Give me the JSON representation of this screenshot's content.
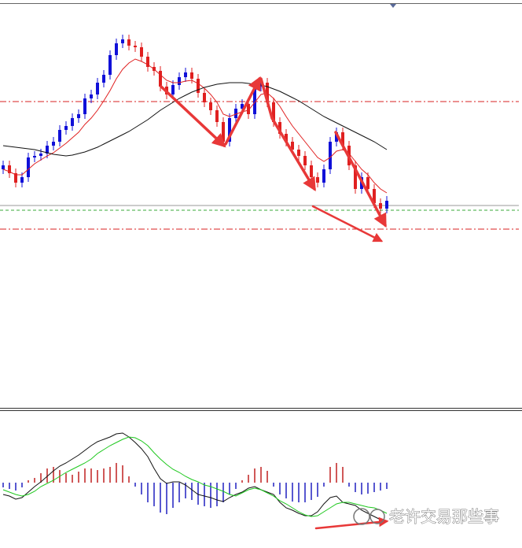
{
  "chart_data": [
    {
      "type": "candlestick",
      "up_color": "#1010d8",
      "down_color": "#e02020",
      "ylim": [
        2,
        520
      ],
      "open": [
        305,
        310,
        300,
        288,
        295,
        320,
        322,
        325,
        335,
        340,
        355,
        360,
        370,
        375,
        395,
        400,
        415,
        425,
        450,
        465,
        470,
        462,
        460,
        448,
        435,
        430,
        410,
        400,
        412,
        422,
        428,
        420,
        402,
        390,
        380,
        365,
        340,
        370,
        382,
        388,
        375,
        410,
        415,
        390,
        365,
        350,
        340,
        330,
        322,
        310,
        295,
        288,
        305,
        340,
        352,
        335,
        310,
        280,
        295,
        280,
        262,
        255
      ],
      "high": [
        316,
        316,
        306,
        301,
        326,
        328,
        331,
        341,
        346,
        361,
        366,
        376,
        381,
        401,
        406,
        421,
        431,
        456,
        471,
        476,
        476,
        468,
        466,
        454,
        441,
        436,
        416,
        418,
        428,
        434,
        434,
        426,
        408,
        396,
        386,
        371,
        376,
        388,
        394,
        394,
        416,
        421,
        421,
        396,
        371,
        356,
        346,
        336,
        328,
        316,
        301,
        311,
        346,
        358,
        358,
        341,
        316,
        301,
        301,
        286,
        268,
        271
      ],
      "low": [
        299,
        294,
        282,
        282,
        289,
        314,
        316,
        319,
        329,
        334,
        349,
        354,
        364,
        369,
        389,
        394,
        409,
        419,
        444,
        459,
        456,
        454,
        442,
        429,
        424,
        404,
        394,
        394,
        406,
        416,
        414,
        396,
        384,
        374,
        359,
        334,
        334,
        364,
        376,
        369,
        369,
        404,
        384,
        359,
        344,
        334,
        324,
        316,
        304,
        289,
        282,
        282,
        299,
        334,
        329,
        304,
        274,
        274,
        274,
        256,
        249,
        249
      ],
      "close": [
        310,
        300,
        288,
        295,
        320,
        322,
        325,
        335,
        340,
        355,
        360,
        370,
        375,
        395,
        400,
        415,
        425,
        450,
        465,
        470,
        462,
        460,
        448,
        435,
        430,
        410,
        400,
        412,
        422,
        428,
        420,
        402,
        390,
        380,
        365,
        340,
        370,
        382,
        388,
        375,
        410,
        415,
        390,
        365,
        350,
        340,
        330,
        322,
        310,
        295,
        288,
        305,
        340,
        352,
        335,
        310,
        280,
        295,
        280,
        262,
        255,
        265
      ],
      "series": [
        {
          "color": "#e02020",
          "values": [
            305,
            302,
            298,
            298,
            305,
            312,
            317,
            322,
            326,
            332,
            338,
            345,
            352,
            362,
            370,
            380,
            392,
            405,
            420,
            432,
            440,
            445,
            442,
            438,
            432,
            425,
            418,
            415,
            415,
            417,
            418,
            414,
            408,
            400,
            390,
            375,
            372,
            375,
            378,
            380,
            390,
            400,
            402,
            395,
            385,
            372,
            360,
            350,
            340,
            330,
            320,
            315,
            320,
            328,
            330,
            325,
            315,
            305,
            298,
            288,
            280,
            275
          ]
        },
        {
          "color": "#111111",
          "values": [
            335,
            334,
            333,
            332,
            331,
            330,
            328,
            326,
            324,
            323,
            322,
            323,
            325,
            327,
            330,
            333,
            337,
            341,
            345,
            349,
            353,
            358,
            363,
            368,
            374,
            380,
            385,
            390,
            395,
            399,
            403,
            406,
            409,
            411,
            413,
            414,
            415,
            415,
            415,
            414,
            413,
            412,
            410,
            407,
            404,
            400,
            396,
            392,
            387,
            382,
            377,
            372,
            368,
            364,
            360,
            356,
            352,
            348,
            344,
            340,
            335,
            330
          ]
        }
      ],
      "levels": [
        {
          "value": 391,
          "color": "#d82020",
          "dash": "dashdot"
        },
        {
          "value": 229,
          "color": "#d82020",
          "dash": "dashdot"
        },
        {
          "value": 253,
          "color": "#3aa83a",
          "dash": "dashed"
        },
        {
          "value": 259,
          "color": "#9a9a9a",
          "dash": "solid"
        }
      ]
    },
    {
      "type": "macd",
      "ylim": [
        -83,
        91
      ],
      "positive_color": "#c02020",
      "negative_color": "#2020c0",
      "values": [
        -6,
        -8,
        -10,
        -6,
        3,
        6,
        12,
        18,
        20,
        16,
        12,
        10,
        14,
        18,
        18,
        16,
        18,
        20,
        25,
        22,
        8,
        -5,
        -15,
        -25,
        -30,
        -38,
        -40,
        -32,
        -25,
        -20,
        -22,
        -28,
        -30,
        -32,
        -30,
        -25,
        -15,
        -8,
        3,
        10,
        18,
        20,
        15,
        -5,
        -15,
        -20,
        -24,
        -25,
        -25,
        -22,
        -18,
        -5,
        20,
        25,
        20,
        -5,
        -12,
        -15,
        -14,
        -12,
        -10,
        -8
      ],
      "series": [
        {
          "color": "#111111",
          "values": [
            -15,
            -17,
            -21,
            -19,
            -12,
            -5,
            1,
            8,
            15,
            21,
            25,
            30,
            35,
            41,
            47,
            52,
            55,
            58,
            62,
            63,
            58,
            51,
            43,
            33,
            18,
            5,
            -1,
            1,
            1,
            -3,
            -9,
            -15,
            -17,
            -19,
            -22,
            -24,
            -19,
            -15,
            -12,
            -7,
            -5,
            -9,
            -12,
            -15,
            -25,
            -32,
            -35,
            -39,
            -42,
            -42,
            -37,
            -27,
            -19,
            -17,
            -25,
            -27,
            -29,
            -35,
            -39,
            -43,
            -47,
            -49
          ]
        },
        {
          "color": "#1ec81e",
          "values": [
            -9,
            -12,
            -15,
            -17,
            -15,
            -11,
            -5,
            -1,
            3,
            8,
            13,
            17,
            21,
            25,
            30,
            37,
            42,
            47,
            51,
            55,
            58,
            57,
            53,
            47,
            38,
            30,
            23,
            17,
            13,
            8,
            4,
            1,
            -3,
            -5,
            -8,
            -11,
            -15,
            -17,
            -13,
            -9,
            -7,
            -9,
            -13,
            -17,
            -23,
            -27,
            -32,
            -37,
            -41,
            -43,
            -42,
            -37,
            -32,
            -27,
            -25,
            -25,
            -27,
            -29,
            -31,
            -32,
            -35,
            -39
          ]
        }
      ]
    }
  ],
  "watermark": "老许交易那些事"
}
